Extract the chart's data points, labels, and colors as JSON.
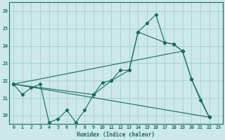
{
  "xlabel": "Humidex (Indice chaleur)",
  "bg_color": "#cce8e8",
  "grid_color": "#99cccc",
  "line_color": "#1a6b5a",
  "xlim": [
    -0.5,
    23.5
  ],
  "ylim": [
    19.5,
    26.5
  ],
  "yticks": [
    20,
    21,
    22,
    23,
    24,
    25,
    26
  ],
  "xticks": [
    0,
    1,
    2,
    3,
    4,
    5,
    6,
    7,
    8,
    9,
    10,
    11,
    12,
    13,
    14,
    15,
    16,
    17,
    18,
    19,
    20,
    21,
    22,
    23
  ],
  "line1_x": [
    0,
    1,
    2,
    3,
    4,
    5,
    6,
    7,
    8,
    9,
    10,
    11,
    12,
    13,
    14,
    15,
    16,
    17,
    18,
    19,
    20,
    21,
    22
  ],
  "line1_y": [
    21.8,
    21.2,
    21.6,
    21.8,
    19.6,
    19.8,
    20.3,
    19.6,
    20.3,
    21.2,
    21.9,
    22.0,
    22.6,
    22.6,
    24.8,
    25.3,
    25.8,
    24.2,
    24.1,
    23.7,
    22.1,
    20.9,
    19.9
  ],
  "line2_x": [
    0,
    19
  ],
  "line2_y": [
    21.8,
    23.7
  ],
  "line3_x": [
    0,
    22
  ],
  "line3_y": [
    21.8,
    19.9
  ],
  "line4_x": [
    0,
    9,
    11,
    13,
    14,
    17,
    18,
    19,
    20,
    22
  ],
  "line4_y": [
    21.8,
    21.2,
    22.0,
    22.6,
    24.8,
    24.2,
    24.1,
    23.7,
    22.1,
    19.9
  ]
}
